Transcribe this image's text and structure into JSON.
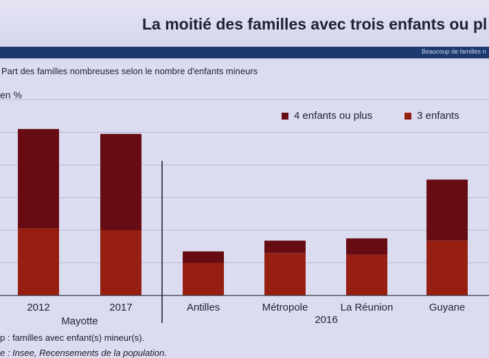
{
  "slide": {
    "title": "La moitié des familles avec trois enfants ou pl",
    "band_text": "Beaucoup de familles n"
  },
  "chart_data": {
    "type": "bar",
    "stacked": true,
    "title": "Part des familles nombreuses selon le nombre d'enfants mineurs",
    "ylabel": "en %",
    "ylim": [
      0,
      60
    ],
    "grid": true,
    "legend_position": "top-right",
    "categories": [
      "2012",
      "2017",
      "Antilles",
      "Métropole",
      "La Réunion",
      "Guyane"
    ],
    "groups": [
      {
        "label": "Mayotte",
        "categories": [
          "2012",
          "2017"
        ]
      },
      {
        "label": "2016",
        "categories": [
          "Antilles",
          "Métropole",
          "La Réunion",
          "Guyane"
        ]
      }
    ],
    "series": [
      {
        "name": "3 enfants",
        "color": "#961f12",
        "values": [
          20.5,
          20,
          10,
          13,
          12.5,
          16.8
        ]
      },
      {
        "name": "4 enfants ou plus",
        "color": "#670c12",
        "values": [
          30.5,
          29.5,
          3.5,
          3.8,
          5,
          18.7
        ]
      }
    ],
    "legend": [
      {
        "name": "4 enfants ou plus",
        "color": "#670c12"
      },
      {
        "name": "3 enfants",
        "color": "#961f12"
      }
    ]
  },
  "footnotes": {
    "line1": "p : familles avec enfant(s) mineur(s).",
    "line2": "e : Insee, Recensements de la population."
  }
}
